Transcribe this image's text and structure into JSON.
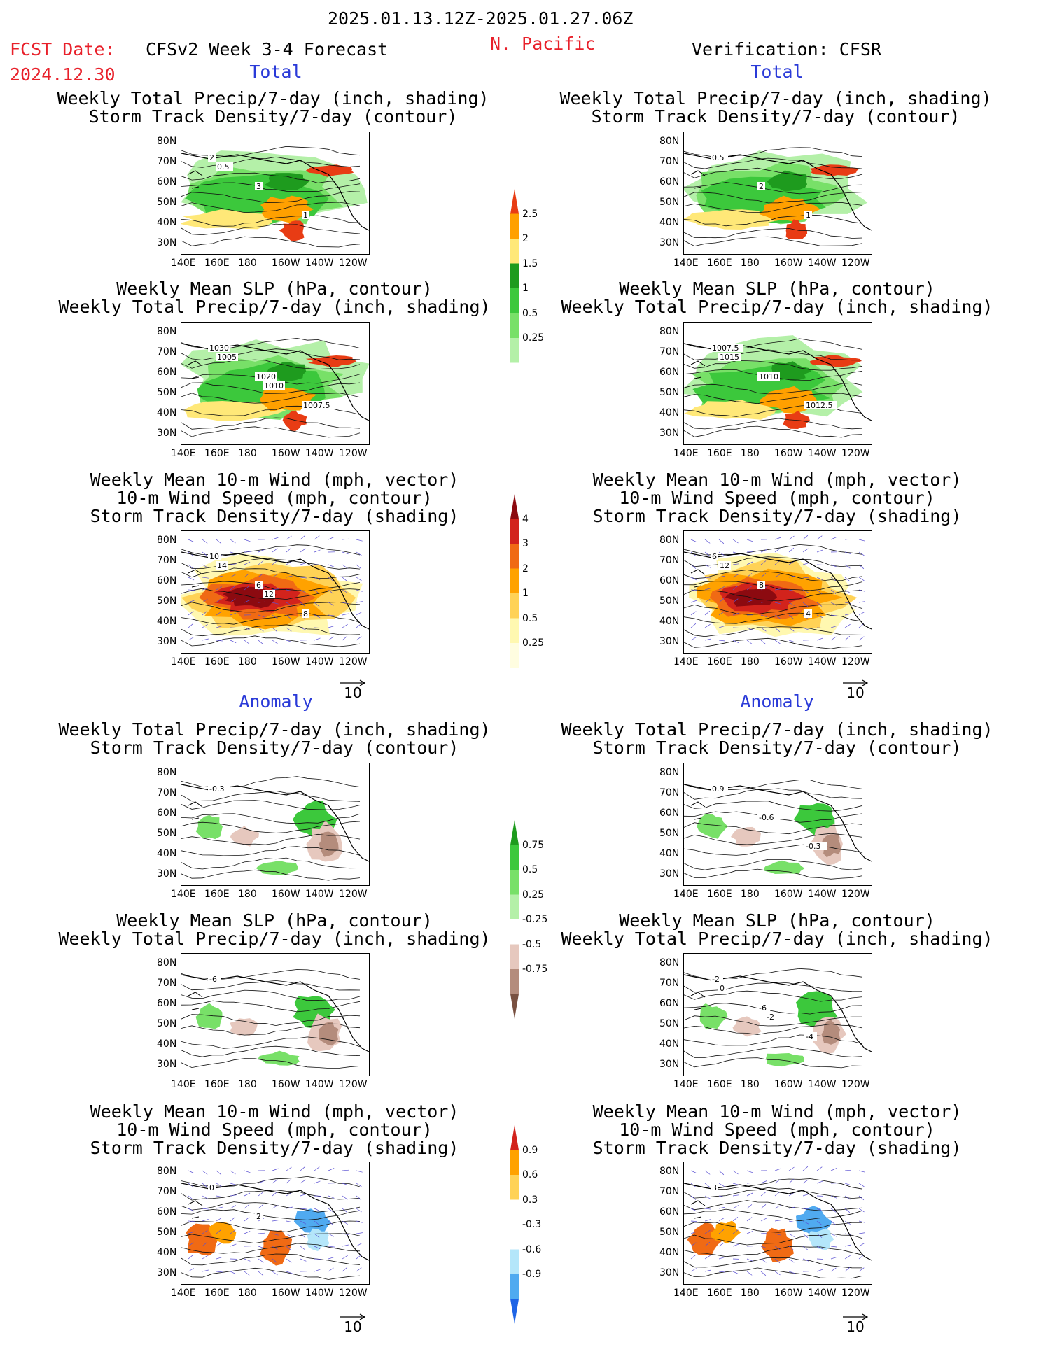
{
  "header": {
    "period": "2025.01.13.12Z-2025.01.27.06Z",
    "fcst_label": "FCST Date:",
    "fcst_date": "2024.12.30",
    "model_title": "CFSv2 Week 3-4 Forecast",
    "region": "N. Pacific",
    "verification": "Verification: CFSR",
    "total_label": "Total",
    "anomaly_label": "Anomaly"
  },
  "colors": {
    "header_red": "#e8202a",
    "section_blue": "#2a3ad8",
    "precip_greens": [
      "#b4f0a8",
      "#78e068",
      "#3cc83c",
      "#1e9b1e"
    ],
    "precip_warm": [
      "#ffe878",
      "#ffa000",
      "#e83c14"
    ],
    "storm_warm": [
      "#fff8b0",
      "#ffd256",
      "#ffa200",
      "#f06a14",
      "#d2231c",
      "#8c0a10"
    ],
    "anom_brown": [
      "#e6c8be",
      "#b48c7c",
      "#785040"
    ],
    "anom_blue": [
      "#b4e6fa",
      "#50aaf0",
      "#1e64e6"
    ],
    "vector_color": "#5a50d2"
  },
  "axes": {
    "lat_labels": [
      "80N",
      "70N",
      "60N",
      "50N",
      "40N",
      "30N"
    ],
    "lon_labels": [
      "140E",
      "160E",
      "180",
      "160W",
      "140W",
      "120W"
    ],
    "vector_ref": "10"
  },
  "panels": {
    "total_precip_storm": [
      "Weekly Total Precip/7-day (inch, shading)",
      "Storm Track Density/7-day (contour)"
    ],
    "total_slp_precip": [
      "Weekly Mean SLP (hPa, contour)",
      "Weekly Total Precip/7-day (inch, shading)"
    ],
    "total_wind": [
      "Weekly Mean 10-m Wind (mph, vector)",
      "10-m Wind Speed (mph, contour)",
      "Storm Track Density/7-day (shading)"
    ],
    "anom_precip_storm": [
      "Weekly Total Precip/7-day (inch, shading)",
      "Storm Track Density/7-day (contour)"
    ],
    "anom_slp_precip": [
      "Weekly Mean SLP (hPa, contour)",
      "Weekly Total Precip/7-day (inch, shading)"
    ],
    "anom_wind": [
      "Weekly Mean 10-m Wind (mph, vector)",
      "10-m Wind Speed (mph, contour)",
      "Storm Track Density/7-day (shading)"
    ]
  },
  "colorbars": {
    "precip_total": [
      "2.5",
      "2",
      "1.5",
      "1",
      "0.5",
      "0.25"
    ],
    "storm_total": [
      "4",
      "3",
      "2",
      "1",
      "0.5",
      "0.25"
    ],
    "precip_anom": [
      "0.75",
      "0.5",
      "0.25",
      "-0.25",
      "-0.5",
      "-0.75"
    ],
    "storm_anom": [
      "0.9",
      "0.6",
      "0.3",
      "-0.3",
      "-0.6",
      "-0.9"
    ]
  },
  "contour_labels": {
    "fc_p1": [
      "2",
      "3",
      "1",
      "0.5"
    ],
    "ob_p1": [
      "0.5",
      "2",
      "1"
    ],
    "fc_p2": [
      "1030",
      "1020",
      "1007.5",
      "1005",
      "1010"
    ],
    "ob_p2": [
      "1007.5",
      "1010",
      "1012.5",
      "1015"
    ],
    "fc_p3": [
      "10",
      "6",
      "8",
      "14",
      "12"
    ],
    "ob_p3": [
      "6",
      "8",
      "4",
      "12"
    ],
    "fc_p4": [
      "-0.3"
    ],
    "ob_p4": [
      "0.9",
      "-0.6",
      "-0.3"
    ],
    "fc_p5": [
      "-6"
    ],
    "ob_p5": [
      "-2",
      "-6",
      "-4",
      "0",
      "-2"
    ],
    "fc_p6": [
      "0",
      "2"
    ],
    "ob_p6": [
      "3"
    ]
  }
}
